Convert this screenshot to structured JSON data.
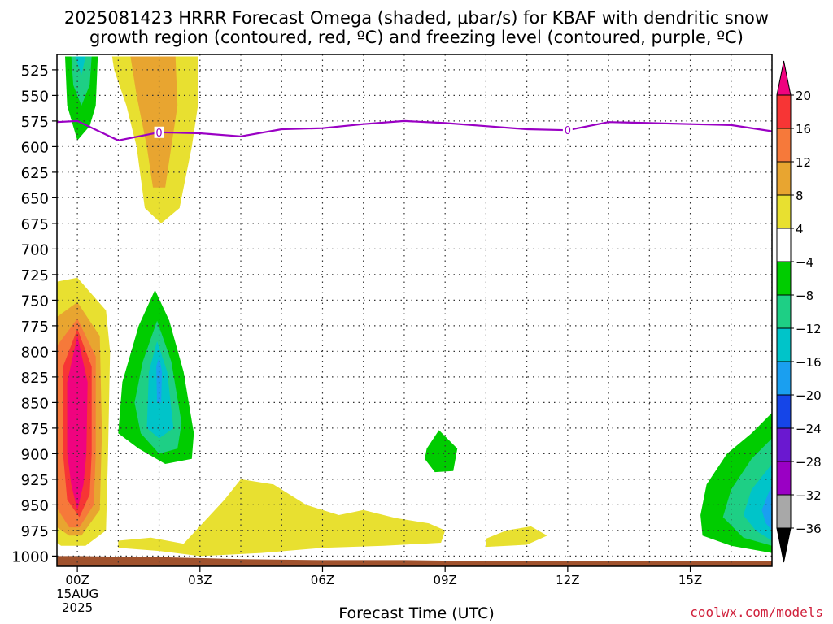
{
  "title": {
    "line1": "2025081423 HRRR Forecast Omega (shaded, μbar/s) for KBAF with dendritic snow",
    "line2": "growth region (contoured, red, ºC) and freezing level (contoured, purple, ºC)"
  },
  "credit": "coolwx.com/models",
  "chart_data": {
    "type": "heatmap",
    "xlabel": "Forecast Time (UTC)",
    "ylabel": "",
    "xlim_hours": [
      -0.5,
      17
    ],
    "ylim_hpa": [
      510,
      1010
    ],
    "y_ticks": [
      525,
      550,
      575,
      600,
      625,
      650,
      675,
      700,
      725,
      750,
      775,
      800,
      825,
      850,
      875,
      900,
      925,
      950,
      975,
      1000
    ],
    "x_ticks": [
      {
        "hour": 0,
        "label": "00Z",
        "date1": "15AUG",
        "date2": "2025"
      },
      {
        "hour": 3,
        "label": "03Z"
      },
      {
        "hour": 6,
        "label": "06Z"
      },
      {
        "hour": 9,
        "label": "09Z"
      },
      {
        "hour": 12,
        "label": "12Z"
      },
      {
        "hour": 15,
        "label": "15Z"
      }
    ],
    "grid": true,
    "colorbar": {
      "levels": [
        {
          "label": "20",
          "value": 20
        },
        {
          "label": "16",
          "value": 16
        },
        {
          "label": "12",
          "value": 12
        },
        {
          "label": "8",
          "value": 8
        },
        {
          "label": "4",
          "value": 4
        },
        {
          "label": "−4",
          "value": -4
        },
        {
          "label": "−8",
          "value": -8
        },
        {
          "label": "−12",
          "value": -12
        },
        {
          "label": "−16",
          "value": -16
        },
        {
          "label": "−20",
          "value": -20
        },
        {
          "label": "−24",
          "value": -24
        },
        {
          "label": "−28",
          "value": -28
        },
        {
          "label": "−32",
          "value": -32
        },
        {
          "label": "−36",
          "value": -36
        }
      ],
      "colors": [
        "#f0037f",
        "#f73535",
        "#f6793a",
        "#e8a530",
        "#e8e030",
        "#ffffff",
        "#00cc00",
        "#1ecf85",
        "#00c4c9",
        "#1a9ff0",
        "#1545e8",
        "#6a18d0",
        "#9a00c4",
        "#a8a8a8"
      ],
      "under_color": "#000000"
    },
    "freezing_level": {
      "label": "0",
      "color": "#9a00c4",
      "hours": [
        -0.5,
        0,
        1,
        2,
        3,
        4,
        5,
        6,
        7,
        8,
        9,
        10,
        11,
        12,
        13,
        14,
        15,
        16,
        17
      ],
      "pressure_hpa": [
        576,
        575,
        594,
        586,
        587,
        590,
        583,
        582,
        578,
        575,
        577,
        580,
        583,
        584,
        576,
        577,
        578,
        579,
        585
      ],
      "label_hours": [
        2,
        12
      ]
    },
    "omega_regions": [
      {
        "value": -4,
        "color": "#00cc00",
        "polygon": [
          [
            -0.3,
            512
          ],
          [
            0.5,
            512
          ],
          [
            0.45,
            560
          ],
          [
            0.3,
            580
          ],
          [
            0.0,
            594
          ],
          [
            -0.25,
            560
          ]
        ]
      },
      {
        "value": -8,
        "color": "#1ecf85",
        "polygon": [
          [
            -0.15,
            512
          ],
          [
            0.35,
            512
          ],
          [
            0.3,
            540
          ],
          [
            0.1,
            560
          ],
          [
            -0.1,
            540
          ]
        ]
      },
      {
        "value": -12,
        "color": "#00c4c9",
        "polygon": [
          [
            -0.05,
            512
          ],
          [
            0.2,
            512
          ],
          [
            0.1,
            530
          ]
        ]
      },
      {
        "value": 4,
        "color": "#e8e030",
        "polygon": [
          [
            0.85,
            512
          ],
          [
            2.95,
            512
          ],
          [
            2.95,
            560
          ],
          [
            2.8,
            600
          ],
          [
            2.5,
            660
          ],
          [
            2.05,
            675
          ],
          [
            1.65,
            660
          ],
          [
            1.45,
            600
          ],
          [
            1.2,
            560
          ],
          [
            0.9,
            525
          ]
        ]
      },
      {
        "value": 8,
        "color": "#e8a530",
        "polygon": [
          [
            1.3,
            512
          ],
          [
            2.4,
            512
          ],
          [
            2.45,
            560
          ],
          [
            2.3,
            600
          ],
          [
            2.15,
            640
          ],
          [
            1.85,
            640
          ],
          [
            1.7,
            600
          ],
          [
            1.45,
            550
          ]
        ]
      },
      {
        "value": 4,
        "color": "#e8e030",
        "polygon": [
          [
            -0.9,
            735
          ],
          [
            0,
            728
          ],
          [
            0.7,
            760
          ],
          [
            0.8,
            800
          ],
          [
            0.75,
            900
          ],
          [
            0.7,
            975
          ],
          [
            0.2,
            990
          ],
          [
            -0.4,
            990
          ],
          [
            -0.9,
            975
          ]
        ]
      },
      {
        "value": 8,
        "color": "#e8a530",
        "polygon": [
          [
            -0.8,
            775
          ],
          [
            0,
            752
          ],
          [
            0.55,
            785
          ],
          [
            0.6,
            880
          ],
          [
            0.55,
            955
          ],
          [
            0.1,
            980
          ],
          [
            -0.2,
            980
          ],
          [
            -0.75,
            965
          ]
        ]
      },
      {
        "value": 12,
        "color": "#f6793a",
        "polygon": [
          [
            -0.6,
            800
          ],
          [
            0,
            768
          ],
          [
            0.45,
            805
          ],
          [
            0.45,
            900
          ],
          [
            0.4,
            950
          ],
          [
            0.05,
            972
          ],
          [
            -0.2,
            972
          ],
          [
            -0.55,
            950
          ]
        ]
      },
      {
        "value": 16,
        "color": "#f73535",
        "polygon": [
          [
            -0.35,
            815
          ],
          [
            0,
            778
          ],
          [
            0.35,
            815
          ],
          [
            0.35,
            900
          ],
          [
            0.3,
            940
          ],
          [
            0.05,
            962
          ],
          [
            -0.25,
            945
          ],
          [
            -0.35,
            900
          ]
        ]
      },
      {
        "value": 20,
        "color": "#f0037f",
        "polygon": [
          [
            -0.25,
            830
          ],
          [
            0,
            785
          ],
          [
            0.25,
            830
          ],
          [
            0.22,
            900
          ],
          [
            0.15,
            930
          ],
          [
            0.0,
            955
          ],
          [
            -0.15,
            930
          ],
          [
            -0.25,
            900
          ]
        ]
      },
      {
        "value": -4,
        "color": "#00cc00",
        "polygon": [
          [
            1.5,
            775
          ],
          [
            1.9,
            740
          ],
          [
            2.25,
            770
          ],
          [
            2.6,
            820
          ],
          [
            2.85,
            880
          ],
          [
            2.8,
            905
          ],
          [
            2.15,
            910
          ],
          [
            1.5,
            895
          ],
          [
            1.0,
            880
          ],
          [
            1.1,
            830
          ]
        ]
      },
      {
        "value": -8,
        "color": "#1ecf85",
        "polygon": [
          [
            1.6,
            810
          ],
          [
            1.95,
            770
          ],
          [
            2.3,
            810
          ],
          [
            2.55,
            870
          ],
          [
            2.45,
            895
          ],
          [
            2.0,
            900
          ],
          [
            1.55,
            880
          ],
          [
            1.4,
            850
          ]
        ]
      },
      {
        "value": -12,
        "color": "#00c4c9",
        "polygon": [
          [
            1.75,
            820
          ],
          [
            1.95,
            790
          ],
          [
            2.2,
            820
          ],
          [
            2.35,
            875
          ],
          [
            2.0,
            885
          ],
          [
            1.7,
            875
          ]
        ]
      },
      {
        "value": -16,
        "color": "#1a9ff0",
        "polygon": [
          [
            1.93,
            815
          ],
          [
            2.0,
            805
          ],
          [
            2.07,
            820
          ],
          [
            2.05,
            850
          ],
          [
            1.95,
            850
          ]
        ]
      },
      {
        "value": 4,
        "color": "#e8e030",
        "polygon": [
          [
            1.0,
            985
          ],
          [
            1.8,
            982
          ],
          [
            2.6,
            988
          ],
          [
            3.6,
            945
          ],
          [
            4.0,
            925
          ],
          [
            4.8,
            930
          ],
          [
            5.6,
            950
          ],
          [
            6.4,
            960
          ],
          [
            7.0,
            955
          ],
          [
            7.8,
            963
          ],
          [
            8.6,
            968
          ],
          [
            9.0,
            975
          ],
          [
            8.9,
            987
          ],
          [
            7.5,
            990
          ],
          [
            6.0,
            992
          ],
          [
            4.5,
            997
          ],
          [
            3.0,
            1000
          ],
          [
            2.0,
            995
          ],
          [
            1.0,
            992
          ]
        ]
      },
      {
        "value": 4,
        "color": "#e8e030",
        "polygon": [
          [
            10.0,
            983
          ],
          [
            10.5,
            975
          ],
          [
            11.1,
            971
          ],
          [
            11.5,
            980
          ],
          [
            11.0,
            989
          ],
          [
            10.0,
            991
          ]
        ]
      },
      {
        "value": -4,
        "color": "#00cc00",
        "polygon": [
          [
            8.55,
            895
          ],
          [
            8.85,
            877
          ],
          [
            9.3,
            895
          ],
          [
            9.2,
            917
          ],
          [
            8.75,
            918
          ],
          [
            8.5,
            905
          ]
        ]
      },
      {
        "value": -4,
        "color": "#00cc00",
        "polygon": [
          [
            15.25,
            960
          ],
          [
            15.4,
            930
          ],
          [
            15.9,
            900
          ],
          [
            16.5,
            880
          ],
          [
            17,
            860
          ],
          [
            17,
            997
          ],
          [
            16.0,
            990
          ],
          [
            15.3,
            980
          ]
        ]
      },
      {
        "value": -8,
        "color": "#1ecf85",
        "polygon": [
          [
            15.8,
            962
          ],
          [
            16.0,
            935
          ],
          [
            16.5,
            905
          ],
          [
            17,
            885
          ],
          [
            17,
            990
          ],
          [
            16.3,
            982
          ]
        ]
      },
      {
        "value": -12,
        "color": "#00c4c9",
        "polygon": [
          [
            16.3,
            960
          ],
          [
            16.5,
            935
          ],
          [
            17,
            910
          ],
          [
            17,
            985
          ],
          [
            16.6,
            975
          ]
        ]
      },
      {
        "value": -16,
        "color": "#1a9ff0",
        "polygon": [
          [
            16.75,
            955
          ],
          [
            17,
            930
          ],
          [
            17,
            975
          ],
          [
            16.85,
            968
          ]
        ]
      }
    ],
    "terrain": {
      "color": "#a0522d",
      "hours": [
        -0.5,
        0,
        2,
        4,
        6,
        8,
        10,
        12,
        14,
        17
      ],
      "surface_pressure_hpa": [
        1000,
        1000,
        1001,
        1003,
        1004,
        1004,
        1005,
        1005,
        1005,
        1005
      ]
    }
  }
}
